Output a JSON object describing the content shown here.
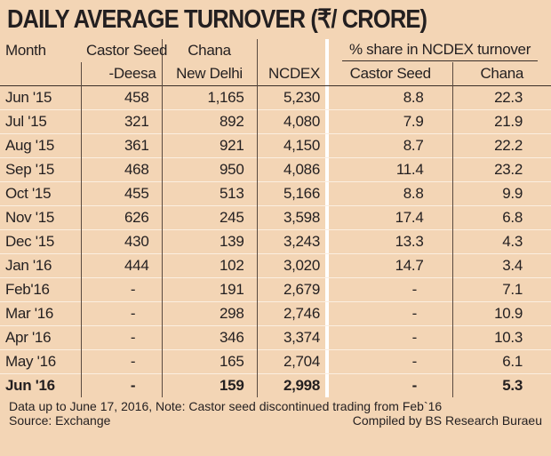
{
  "title": "DAILY AVERAGE TURNOVER  (₹/ CRORE)",
  "colors": {
    "background": "#f3d5b5",
    "text": "#231f20"
  },
  "headers": {
    "month": "Month",
    "castor_1": "Castor Seed",
    "castor_2": "-Deesa",
    "chana_1": "Chana",
    "chana_2": "New Delhi",
    "ncdex": "NCDEX",
    "share_group": "% share in NCDEX turnover",
    "share_castor": "Castor Seed",
    "share_chana": "Chana"
  },
  "chart_data": {
    "type": "table",
    "title": "DAILY AVERAGE TURNOVER  (₹/ CRORE)",
    "columns": [
      "Month",
      "Castor Seed -Deesa",
      "Chana New Delhi",
      "NCDEX",
      "% share in NCDEX turnover: Castor Seed",
      "% share in NCDEX turnover: Chana"
    ],
    "rows": [
      [
        "Jun '15",
        "458",
        "1,165",
        "5,230",
        "8.8",
        "22.3"
      ],
      [
        "Jul '15",
        "321",
        "892",
        "4,080",
        "7.9",
        "21.9"
      ],
      [
        "Aug '15",
        "361",
        "921",
        "4,150",
        "8.7",
        "22.2"
      ],
      [
        "Sep '15",
        "468",
        "950",
        "4,086",
        "11.4",
        "23.2"
      ],
      [
        "Oct '15",
        "455",
        "513",
        "5,166",
        "8.8",
        "9.9"
      ],
      [
        "Nov '15",
        "626",
        "245",
        "3,598",
        "17.4",
        "6.8"
      ],
      [
        "Dec '15",
        "430",
        "139",
        "3,243",
        "13.3",
        "4.3"
      ],
      [
        "Jan '16",
        "444",
        "102",
        "3,020",
        "14.7",
        "3.4"
      ],
      [
        "Feb'16",
        "-",
        "191",
        "2,679",
        "-",
        "7.1"
      ],
      [
        "Mar '16",
        "-",
        "298",
        "2,746",
        "-",
        "10.9"
      ],
      [
        "Apr '16",
        "-",
        "346",
        "3,374",
        "-",
        "10.3"
      ],
      [
        "May '16",
        "-",
        "165",
        "2,704",
        "-",
        "6.1"
      ],
      [
        "Jun '16",
        "-",
        "159",
        "2,998",
        "-",
        "5.3"
      ]
    ]
  },
  "footer": {
    "note": "Data up to June 17, 2016, Note: Castor seed discontinued trading from Feb`16",
    "source": "Source: Exchange",
    "credit": "Compiled by BS Research Buraeu"
  }
}
